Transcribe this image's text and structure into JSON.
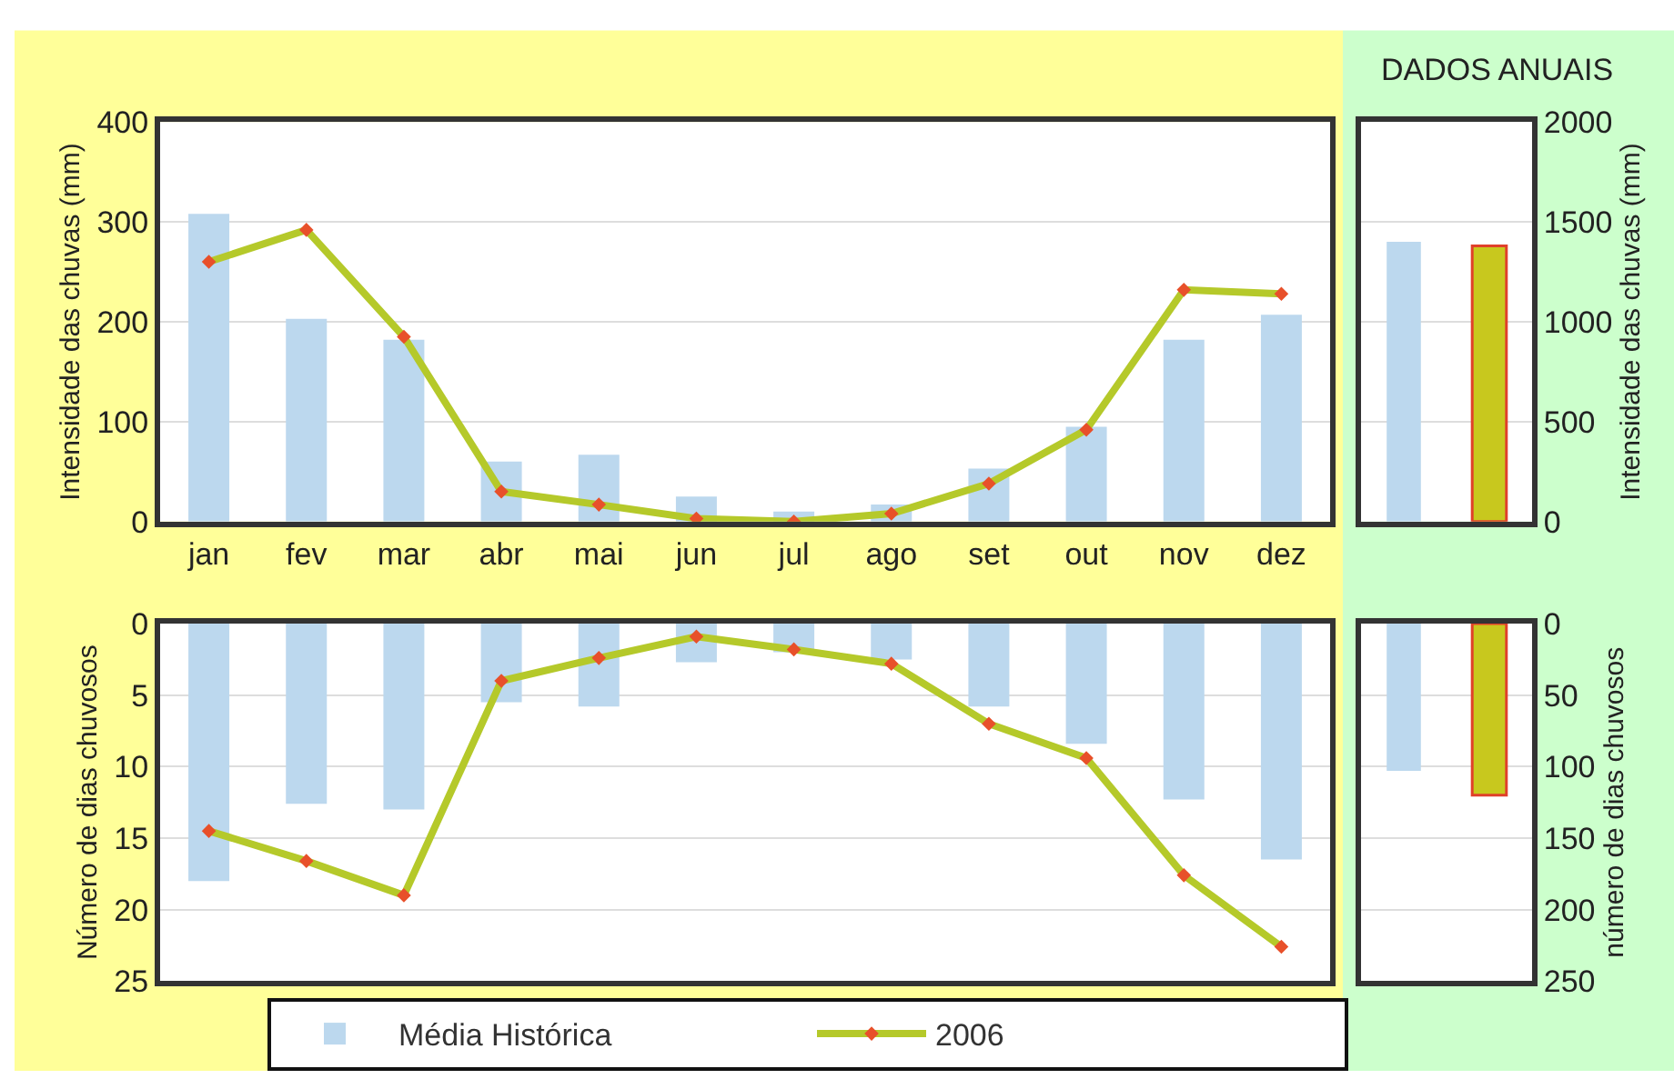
{
  "chart_data": [
    {
      "type": "bar",
      "categories": [
        "jan",
        "fev",
        "mar",
        "abr",
        "mai",
        "jun",
        "jul",
        "ago",
        "set",
        "out",
        "nov",
        "dez"
      ],
      "ylabel": "Intensidade das chuvas (mm)",
      "ylim": [
        0,
        400
      ],
      "yticks": [
        0,
        100,
        200,
        300,
        400
      ],
      "grid": "y",
      "legend": "bottom",
      "marker": "diamond",
      "series": [
        {
          "name": "Média Histórica",
          "color": "#bcd8ee",
          "values": [
            308,
            203,
            182,
            60,
            67,
            25,
            10,
            17,
            53,
            95,
            182,
            207
          ]
        },
        {
          "name": "2006",
          "type": "line",
          "color": "#b5c92a",
          "values": [
            260,
            292,
            185,
            30,
            17,
            3,
            0,
            8,
            38,
            92,
            232,
            228
          ]
        }
      ]
    },
    {
      "type": "bar",
      "title": "DADOS ANUAIS",
      "categories": [
        null,
        null
      ],
      "ylabel": "Intensidade das chuvas (mm)",
      "ylim": [
        0,
        2000
      ],
      "yticks": [
        0,
        500,
        1000,
        1500,
        2000
      ],
      "grid": "y",
      "tick_labels": "y",
      "values": [
        1400,
        1380
      ],
      "colors": [
        "#bcd8ee",
        "#c8c81e"
      ]
    },
    {
      "type": "bar",
      "categories": [
        null,
        null,
        null,
        null,
        null,
        null,
        null,
        null,
        null,
        null,
        null,
        null
      ],
      "ylabel": "Número de dias chuvosos",
      "ylim": [
        25,
        0
      ],
      "yticks": [
        0,
        5,
        10,
        15,
        20,
        25
      ],
      "grid": "y",
      "tick_labels": "y",
      "marker": "diamond",
      "series": [
        {
          "color": "#bcd8ee",
          "values": [
            18,
            12.6,
            13,
            5.5,
            5.8,
            2.7,
            2,
            2.5,
            5.8,
            8.4,
            12.3,
            16.5
          ]
        },
        {
          "type": "line",
          "color": "#b5c92a",
          "values": [
            14.5,
            16.6,
            19,
            4,
            2.4,
            0.9,
            1.8,
            2.8,
            7,
            9.4,
            17.6,
            22.6
          ]
        }
      ]
    },
    {
      "type": "bar",
      "categories": [
        null,
        null
      ],
      "ylabel": "número de dias chuvosos",
      "ylim": [
        250,
        0
      ],
      "yticks": [
        0,
        50,
        100,
        150,
        200,
        250
      ],
      "grid": "y",
      "tick_labels": "y",
      "values": [
        103,
        120
      ],
      "colors": [
        "#bcd8ee",
        "#c8c81e"
      ]
    }
  ]
}
